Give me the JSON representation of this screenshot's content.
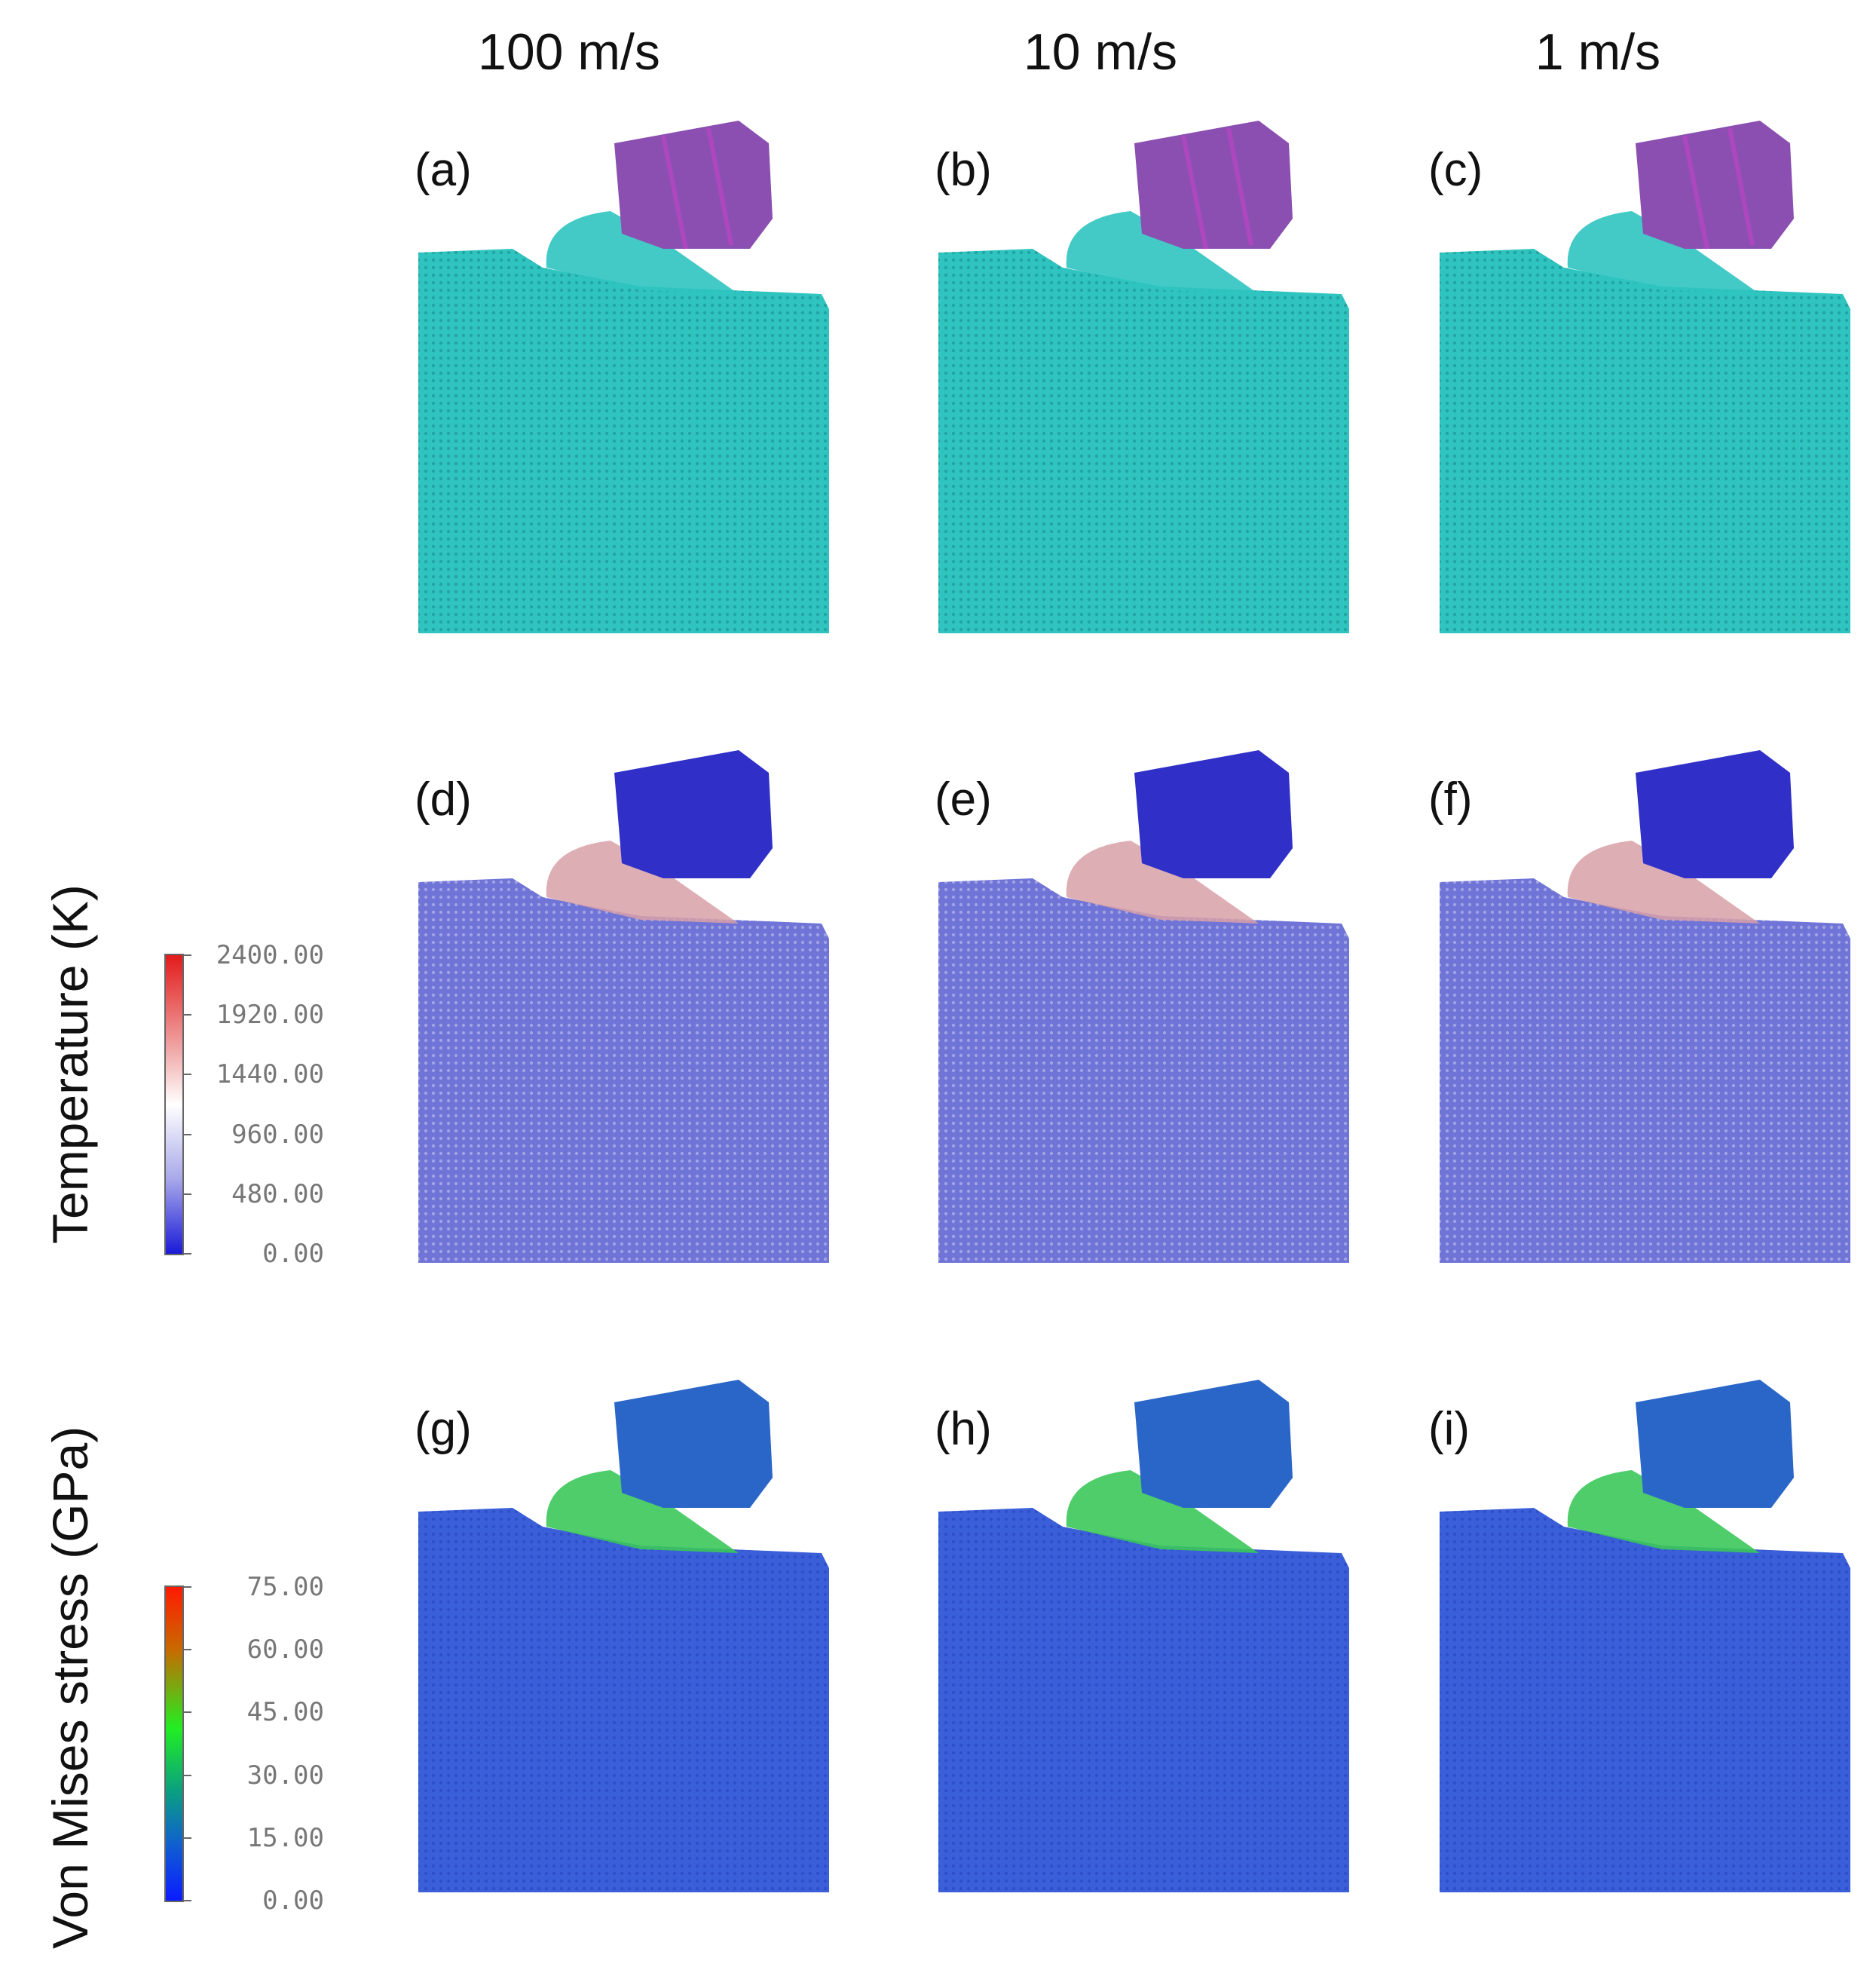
{
  "columns": [
    {
      "header": "100 m/s"
    },
    {
      "header": "10 m/s"
    },
    {
      "header": "1 m/s"
    }
  ],
  "rows": [
    {
      "key": "structure",
      "title": "",
      "panels": [
        "(a)",
        "(b)",
        "(c)"
      ]
    },
    {
      "key": "temperature",
      "title": "Temperature (K)",
      "panels": [
        "(d)",
        "(e)",
        "(f)"
      ]
    },
    {
      "key": "stress",
      "title": "Von Mises stress (GPa)",
      "panels": [
        "(g)",
        "(h)",
        "(i)"
      ]
    }
  ],
  "colorbars": {
    "temperature": {
      "ticks": [
        "2400.00",
        "1920.00",
        "1440.00",
        "960.00",
        "480.00",
        "0.00"
      ],
      "colors": [
        "#e21b1b",
        "#ffffff",
        "#1a1ad8"
      ]
    },
    "stress": {
      "ticks": [
        "75.00",
        "60.00",
        "45.00",
        "30.00",
        "15.00",
        "0.00"
      ],
      "colors": [
        "#ff1a00",
        "#22ee22",
        "#0a1bff"
      ]
    }
  },
  "palette": {
    "substrate_structure": "#2fc4c0",
    "tool_structure": "#8a4fb0",
    "substrate_temperature": "#6f74d6",
    "tool_temperature": "#3030c8",
    "chip_hot_temperature": "#d8a0a8",
    "substrate_stress": "#3a5fd8",
    "tool_stress": "#2a66c8",
    "chip_stress": "#3bc85a"
  }
}
